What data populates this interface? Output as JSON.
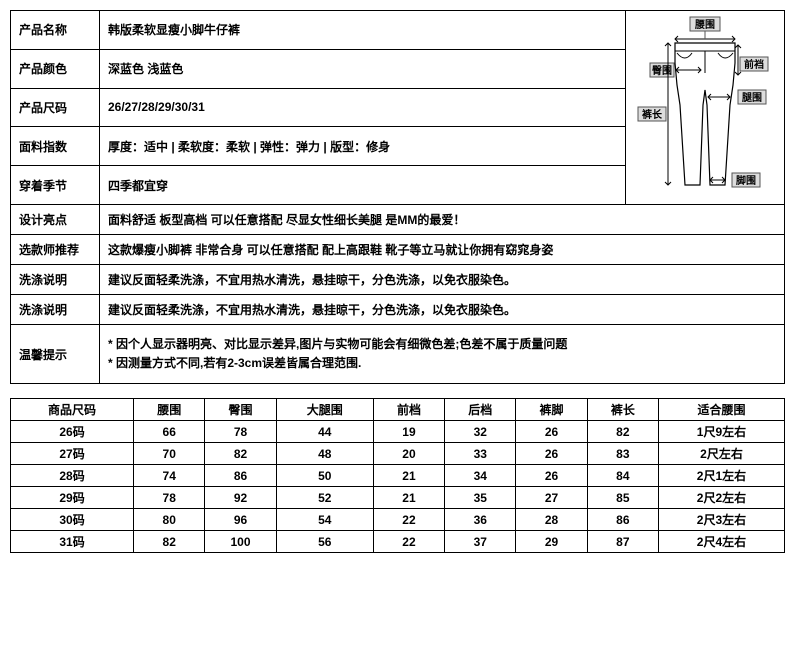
{
  "spec": {
    "rows": [
      {
        "label": "产品名称",
        "value": "韩版柔软显瘦小脚牛仔裤"
      },
      {
        "label": "产品颜色",
        "value": "深蓝色 浅蓝色"
      },
      {
        "label": "产品尺码",
        "value": "26/27/28/29/30/31"
      },
      {
        "label": "面料指数",
        "value": "厚度：适中 | 柔软度：柔软 | 弹性：弹力 | 版型：修身"
      },
      {
        "label": "穿着季节",
        "value": "四季都宜穿"
      },
      {
        "label": "设计亮点",
        "value": "面料舒适 板型高档 可以任意搭配 尽显女性细长美腿 是MM的最爱！"
      },
      {
        "label": "选款师推荐",
        "value": "这款爆瘦小脚裤 非常合身 可以任意搭配 配上高跟鞋 靴子等立马就让你拥有窈窕身姿"
      },
      {
        "label": "洗涤说明",
        "value": "建议反面轻柔洗涤，不宜用热水清洗，悬挂晾干，分色洗涤，以免衣服染色。"
      },
      {
        "label": "洗涤说明",
        "value": "建议反面轻柔洗涤，不宜用热水清洗，悬挂晾干，分色洗涤，以免衣服染色。"
      }
    ],
    "tip_label": "温馨提示",
    "tip_line1": "* 因个人显示器明亮、对比显示差异,图片与实物可能会有细微色差;色差不属于质量问题",
    "tip_line2": "* 因测量方式不同,若有2-3cm误差皆属合理范围."
  },
  "diagram": {
    "labels": {
      "waist": "腰围",
      "hip": "臀围",
      "front": "前裆",
      "thigh": "腿围",
      "length": "裤长",
      "ankle": "脚围"
    }
  },
  "size_table": {
    "headers": [
      "商品尺码",
      "腰围",
      "臀围",
      "大腿围",
      "前档",
      "后档",
      "裤脚",
      "裤长",
      "适合腰围"
    ],
    "rows": [
      [
        "26码",
        "66",
        "78",
        "44",
        "19",
        "32",
        "26",
        "82",
        "1尺9左右"
      ],
      [
        "27码",
        "70",
        "82",
        "48",
        "20",
        "33",
        "26",
        "83",
        "2尺左右"
      ],
      [
        "28码",
        "74",
        "86",
        "50",
        "21",
        "34",
        "26",
        "84",
        "2尺1左右"
      ],
      [
        "29码",
        "78",
        "92",
        "52",
        "21",
        "35",
        "27",
        "85",
        "2尺2左右"
      ],
      [
        "30码",
        "80",
        "96",
        "54",
        "22",
        "36",
        "28",
        "86",
        "2尺3左右"
      ],
      [
        "31码",
        "82",
        "100",
        "56",
        "22",
        "37",
        "29",
        "87",
        "2尺4左右"
      ]
    ]
  }
}
